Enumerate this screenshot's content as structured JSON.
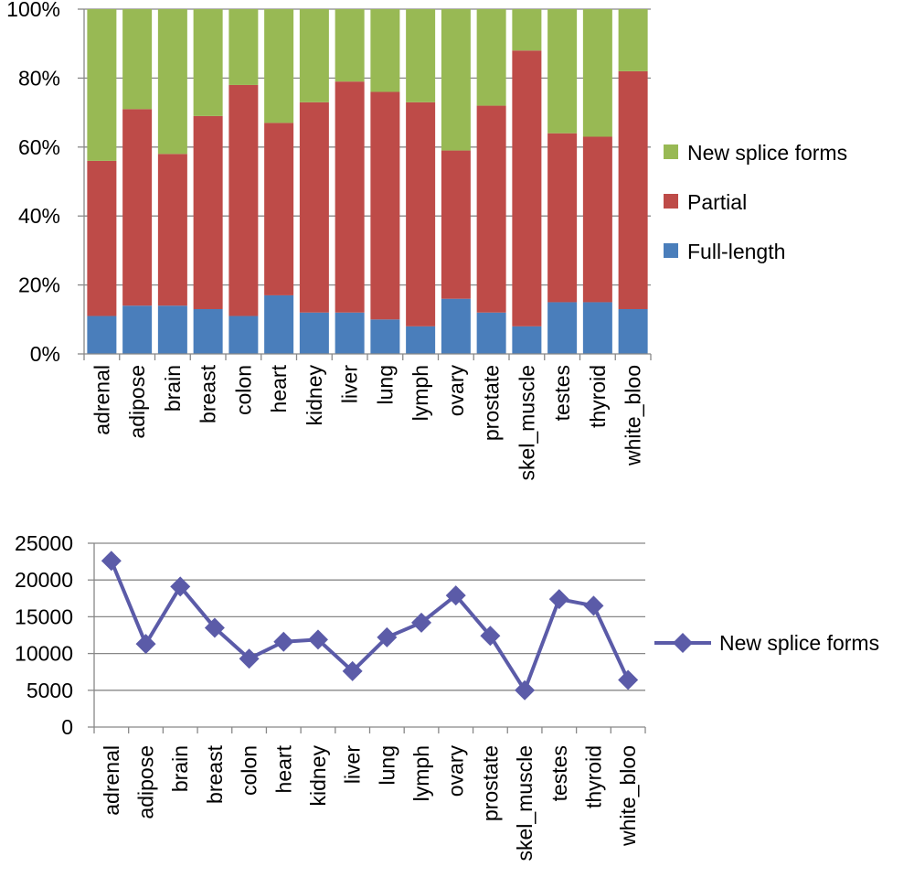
{
  "chart_data": [
    {
      "type": "bar",
      "stacked": "percent",
      "categories": [
        "adrenal",
        "adipose",
        "brain",
        "breast",
        "colon",
        "heart",
        "kidney",
        "liver",
        "lung",
        "lymph",
        "ovary",
        "prostate",
        "skel_muscle",
        "testes",
        "thyroid",
        "white_bloo"
      ],
      "series": [
        {
          "name": "Full-length",
          "color": "#4a7ebb",
          "values": [
            11,
            14,
            14,
            13,
            11,
            17,
            12,
            12,
            10,
            8,
            16,
            12,
            8,
            15,
            15,
            13
          ]
        },
        {
          "name": "Partial",
          "color": "#be4b48",
          "values": [
            45,
            57,
            44,
            56,
            67,
            50,
            61,
            67,
            66,
            65,
            43,
            60,
            80,
            49,
            48,
            69
          ]
        },
        {
          "name": "New splice forms",
          "color": "#98b954",
          "values": [
            44,
            29,
            42,
            31,
            22,
            33,
            27,
            21,
            24,
            27,
            41,
            28,
            12,
            36,
            37,
            18
          ]
        }
      ],
      "ylim": [
        0,
        100
      ],
      "yticks": [
        "0%",
        "20%",
        "40%",
        "60%",
        "80%",
        "100%"
      ],
      "grid": true,
      "legend": "right",
      "legend_order": [
        "New splice forms",
        "Partial",
        "Full-length"
      ]
    },
    {
      "type": "line",
      "categories": [
        "adrenal",
        "adipose",
        "brain",
        "breast",
        "colon",
        "heart",
        "kidney",
        "liver",
        "lung",
        "lymph",
        "ovary",
        "prostate",
        "skel_muscle",
        "testes",
        "thyroid",
        "white_bloo"
      ],
      "series": [
        {
          "name": "New splice forms",
          "color": "#5b5ba8",
          "marker": "diamond",
          "values": [
            22600,
            11300,
            19100,
            13500,
            9300,
            11600,
            11900,
            7600,
            12200,
            14200,
            17900,
            12400,
            5000,
            17400,
            16500,
            6400
          ]
        }
      ],
      "ylim": [
        0,
        25000
      ],
      "yticks": [
        "0",
        "5000",
        "10000",
        "15000",
        "20000",
        "25000"
      ],
      "grid": true,
      "legend": "right"
    }
  ]
}
